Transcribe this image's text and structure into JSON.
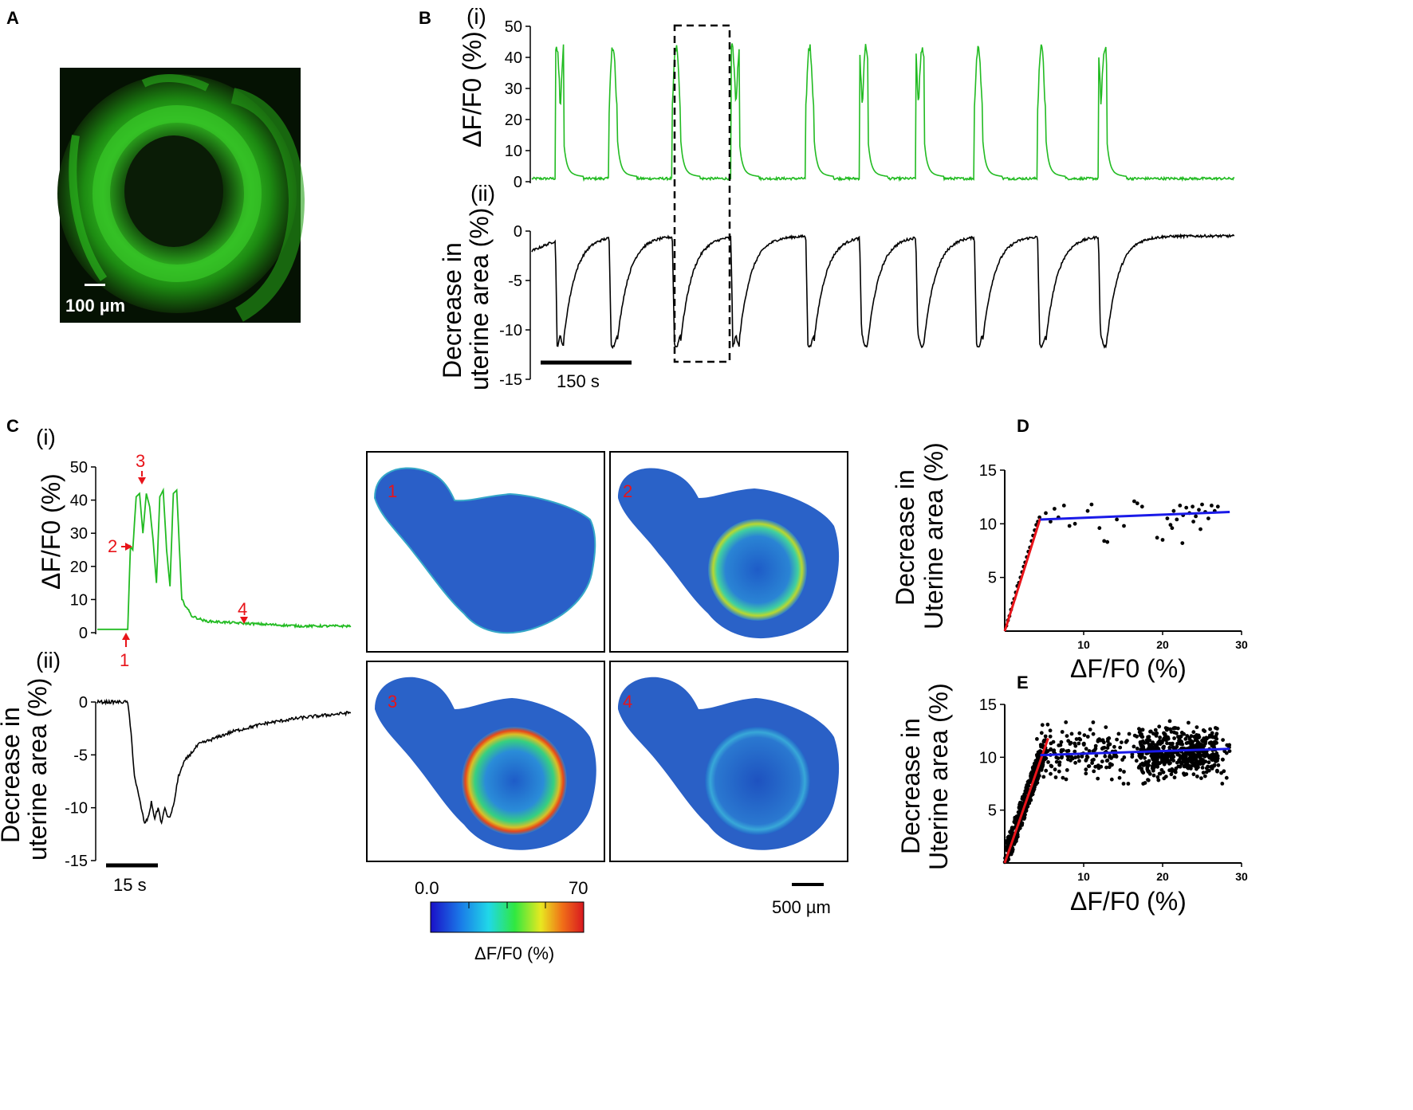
{
  "panels": {
    "A": "A",
    "B": "B",
    "C": "C",
    "D": "D",
    "E": "E"
  },
  "panel_a": {
    "scale_bar": "100 µm"
  },
  "panel_b": {
    "sub_i": "(i)",
    "sub_ii": "(ii)",
    "ylabel_i": "ΔF/F0 (%)",
    "ylabel_ii_line1": "Decrease  in",
    "ylabel_ii_line2": "uterine area (%)",
    "scale_bar": "150 s"
  },
  "panel_c": {
    "sub_i": "(i)",
    "sub_ii": "(ii)",
    "ylabel_i": "ΔF/F0 (%)",
    "ylabel_ii_line1": "Decrease in",
    "ylabel_ii_line2": "uterine area (%)",
    "scale_bar": "15 s",
    "markers": [
      "1",
      "2",
      "3",
      "4"
    ],
    "colorbar": {
      "min": "0.0",
      "max": "70",
      "label": "ΔF/F0 (%)"
    },
    "image_scale_bar": "500 µm",
    "frame_labels": [
      "1",
      "2",
      "3",
      "4"
    ]
  },
  "panel_d": {
    "ylabel_line1": "Decrease in",
    "ylabel_line2": "Uterine area (%)",
    "xlabel": "ΔF/F0 (%)"
  },
  "panel_e": {
    "ylabel_line1": "Decrease in",
    "ylabel_line2": "Uterine area (%)",
    "xlabel": "ΔF/F0 (%)"
  },
  "chart_data": [
    {
      "id": "B-i",
      "type": "line",
      "title": "",
      "xlabel": "",
      "ylabel": "ΔF/F0 (%)",
      "ylim": [
        0,
        50
      ],
      "yticks": [
        "0",
        "10",
        "20",
        "30",
        "40",
        "50"
      ],
      "xlim": [
        0,
        1500
      ],
      "series": [
        {
          "name": "Ca2+ signal",
          "color": "#22bb22",
          "baseline": 1,
          "peak": 44,
          "burst_starts_s": [
            50,
            165,
            300,
            425,
            585,
            700,
            820,
            945,
            1080,
            1210
          ]
        }
      ]
    },
    {
      "id": "B-ii",
      "type": "line",
      "title": "",
      "xlabel": "",
      "ylabel": "Decrease in uterine area (%)",
      "ylim": [
        -15,
        0
      ],
      "yticks": [
        "0",
        "-5",
        "-10",
        "-15"
      ],
      "xlim": [
        0,
        1500
      ],
      "series": [
        {
          "name": "Contraction",
          "color": "#000000",
          "baseline": -1,
          "trough": -12,
          "contraction_starts_s": [
            50,
            165,
            300,
            425,
            585,
            700,
            820,
            945,
            1080,
            1210
          ]
        }
      ]
    },
    {
      "id": "C-i",
      "type": "line",
      "title": "",
      "xlabel": "",
      "ylabel": "ΔF/F0 (%)",
      "ylim": [
        0,
        50
      ],
      "yticks": [
        "0",
        "10",
        "20",
        "30",
        "40",
        "50"
      ],
      "xlim": [
        0,
        75
      ],
      "series": [
        {
          "name": "Ca2+ signal",
          "color": "#22bb22",
          "x": [
            0,
            8,
            9,
            9.8,
            10.5,
            11.5,
            12.5,
            13.5,
            14.5,
            15.5,
            16.5,
            17.5,
            18.5,
            19.5,
            20.5,
            21.5,
            22.5,
            23.5,
            25,
            28,
            32,
            40,
            50,
            60,
            75
          ],
          "y": [
            1,
            1,
            1,
            26,
            25,
            41,
            42,
            30,
            42,
            38,
            28,
            15,
            41,
            43,
            25,
            14,
            42,
            43,
            10,
            5,
            3.5,
            3,
            2.5,
            2,
            2
          ]
        }
      ]
    },
    {
      "id": "C-ii",
      "type": "line",
      "title": "",
      "xlabel": "",
      "ylabel": "Decrease in uterine area (%)",
      "ylim": [
        -15,
        0
      ],
      "yticks": [
        "0",
        "-5",
        "-10",
        "-15"
      ],
      "xlim": [
        0,
        75
      ],
      "series": [
        {
          "name": "Contraction",
          "color": "#000000",
          "x": [
            0,
            9,
            10,
            11,
            12,
            13,
            14,
            15,
            16,
            17,
            18,
            19,
            20,
            21,
            22,
            23,
            24,
            26,
            30,
            40,
            50,
            60,
            75
          ],
          "y": [
            0,
            0,
            -3,
            -7,
            -8.5,
            -10,
            -11.5,
            -11,
            -9.5,
            -11,
            -10,
            -11.5,
            -10,
            -11,
            -10.5,
            -9,
            -7,
            -5.5,
            -4,
            -2.8,
            -2,
            -1.5,
            -1
          ]
        }
      ]
    },
    {
      "id": "D",
      "type": "scatter",
      "xlabel": "ΔF/F0 (%)",
      "ylabel": "Decrease in Uterine area (%)",
      "xlim": [
        0,
        30
      ],
      "ylim": [
        0,
        15
      ],
      "xticks": [
        "10",
        "20",
        "30"
      ],
      "yticks": [
        "5",
        "10",
        "15"
      ],
      "fits": [
        {
          "name": "rising fit",
          "color": "#e8141a",
          "x": [
            0,
            4.5
          ],
          "y": [
            0,
            10.5
          ]
        },
        {
          "name": "plateau fit",
          "color": "#1a1ae8",
          "x": [
            4.5,
            28.5
          ],
          "y": [
            10.4,
            11.1
          ]
        }
      ],
      "series": [
        {
          "name": "points",
          "color": "#000000",
          "x": [
            0.2,
            0.4,
            0.6,
            0.8,
            1.0,
            1.2,
            1.4,
            1.6,
            1.8,
            2.0,
            2.2,
            2.4,
            2.6,
            2.8,
            3.0,
            3.2,
            3.4,
            3.6,
            3.8,
            4.0,
            4.2,
            4.4,
            5.2,
            5.8,
            6.3,
            6.8,
            7.5,
            8.2,
            8.9,
            10.5,
            11.0,
            12.0,
            12.6,
            13.0,
            14.2,
            15.1,
            16.4,
            16.8,
            17.4,
            19.3,
            20.0,
            20.6,
            21.0,
            21.4,
            21.8,
            22.2,
            22.6,
            23.0,
            23.4,
            23.8,
            24.2,
            24.6,
            25.0,
            25.4,
            25.8,
            26.2,
            26.6,
            27.0,
            21.2,
            22.5,
            23.9,
            24.8
          ],
          "y": [
            0.5,
            1.0,
            1.4,
            2.0,
            2.6,
            3.0,
            3.6,
            4.2,
            4.5,
            5.0,
            5.5,
            6.0,
            6.4,
            6.9,
            7.4,
            7.8,
            8.4,
            8.9,
            9.4,
            9.9,
            10.2,
            10.6,
            11.0,
            10.2,
            11.4,
            10.6,
            11.7,
            9.8,
            10.0,
            11.2,
            11.8,
            9.6,
            8.4,
            8.3,
            10.4,
            9.8,
            12.1,
            11.9,
            11.6,
            8.7,
            8.5,
            10.5,
            9.9,
            11.2,
            10.4,
            11.7,
            10.8,
            11.5,
            11.0,
            11.6,
            10.7,
            11.3,
            11.8,
            11.1,
            10.5,
            11.7,
            11.2,
            11.6,
            9.6,
            8.2,
            10.2,
            9.5
          ]
        }
      ]
    },
    {
      "id": "E",
      "type": "scatter",
      "xlabel": "ΔF/F0 (%)",
      "ylabel": "Decrease in Uterine area (%)",
      "xlim": [
        0,
        30
      ],
      "ylim": [
        0,
        15
      ],
      "xticks": [
        "10",
        "20",
        "30"
      ],
      "yticks": [
        "5",
        "10",
        "15"
      ],
      "fits": [
        {
          "name": "rising fit",
          "color": "#e8141a",
          "x": [
            0,
            5.5
          ],
          "y": [
            0,
            11.8
          ]
        },
        {
          "name": "plateau fit",
          "color": "#1a1ae8",
          "x": [
            4.5,
            28.5
          ],
          "y": [
            10.2,
            10.8
          ]
        }
      ],
      "note": "dense cloud of points: rising band x 0–5, plateau y 8–14 for x 5–28"
    }
  ]
}
